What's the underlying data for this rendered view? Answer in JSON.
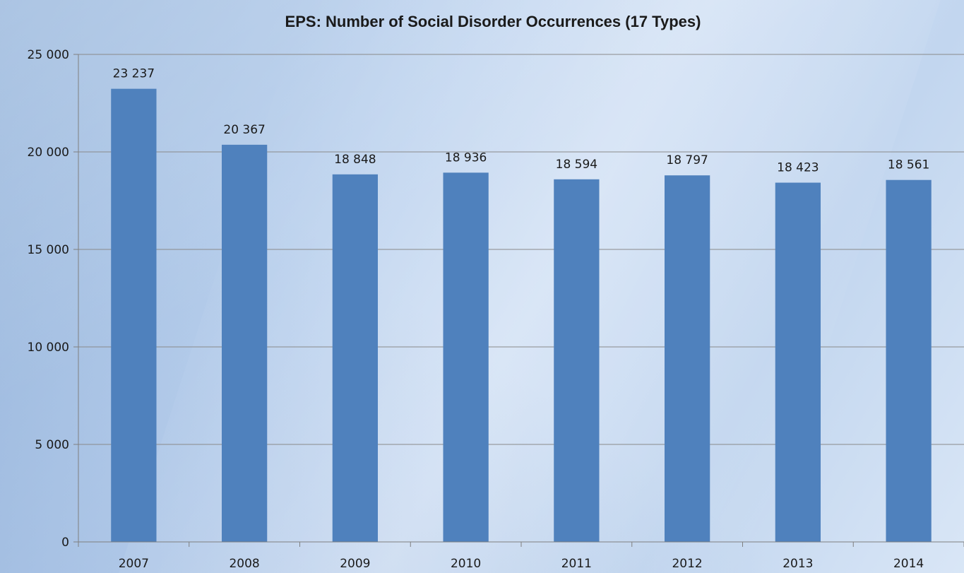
{
  "chart_data": {
    "type": "bar",
    "title": "EPS: Number of Social Disorder Occurrences (17 Types)",
    "categories": [
      "2007",
      "2008",
      "2009",
      "2010",
      "2011",
      "2012",
      "2013",
      "2014"
    ],
    "values": [
      23237,
      20367,
      18848,
      18936,
      18594,
      18797,
      18423,
      18561
    ],
    "data_labels": [
      "23 237",
      "20 367",
      "18 848",
      "18 936",
      "18 594",
      "18 797",
      "18 423",
      "18 561"
    ],
    "xlabel": "",
    "ylabel": "",
    "ylim": [
      0,
      25000
    ],
    "yticks": [
      0,
      5000,
      10000,
      15000,
      20000,
      25000
    ],
    "ytick_labels": [
      "0",
      "5 000",
      "10 000",
      "15 000",
      "20 000",
      "25 000"
    ],
    "grid": true,
    "legend": "none",
    "colors": {
      "bar": "#4f81bd",
      "grid": "#8a8a8a",
      "axis": "#7f7f7f"
    }
  }
}
